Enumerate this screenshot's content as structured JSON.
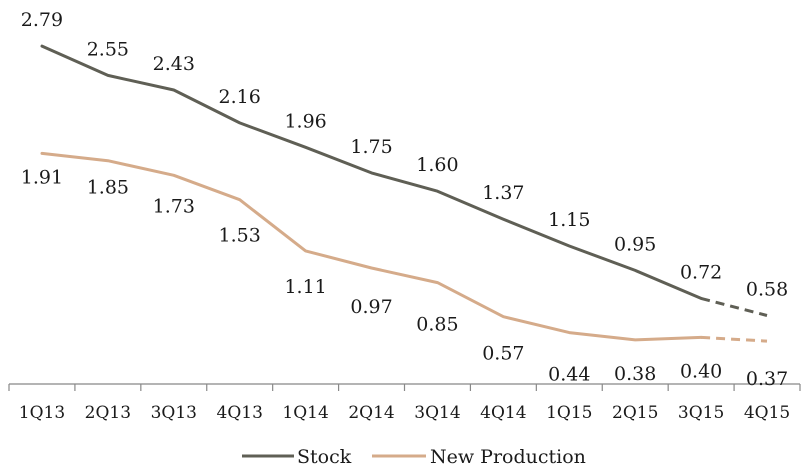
{
  "chart_data": {
    "type": "line",
    "categories": [
      "1Q13",
      "2Q13",
      "3Q13",
      "4Q13",
      "1Q14",
      "2Q14",
      "3Q14",
      "4Q14",
      "1Q15",
      "2Q15",
      "3Q15",
      "4Q15"
    ],
    "series": [
      {
        "name": "Stock",
        "values": [
          2.79,
          2.55,
          2.43,
          2.16,
          1.96,
          1.75,
          1.6,
          1.37,
          1.15,
          0.95,
          0.72,
          0.58
        ],
        "labels": [
          "2.79",
          "2.55",
          "2.43",
          "2.16",
          "1.96",
          "1.75",
          "1.60",
          "1.37",
          "1.15",
          "0.95",
          "0.72",
          "0.58"
        ],
        "color": "#5f5f55",
        "dashed_from_index": 10
      },
      {
        "name": "New Production",
        "values": [
          1.91,
          1.85,
          1.73,
          1.53,
          1.11,
          0.97,
          0.85,
          0.57,
          0.44,
          0.38,
          0.4,
          0.37
        ],
        "labels": [
          "1.91",
          "1.85",
          "1.73",
          "1.53",
          "1.11",
          "0.97",
          "0.85",
          "0.57",
          "0.44",
          "0.38",
          "0.40",
          "0.37"
        ],
        "color": "#d5ab8a",
        "dashed_from_index": 10
      }
    ],
    "ylim": [
      0,
      3
    ],
    "grid": false,
    "legend": "bottom"
  }
}
